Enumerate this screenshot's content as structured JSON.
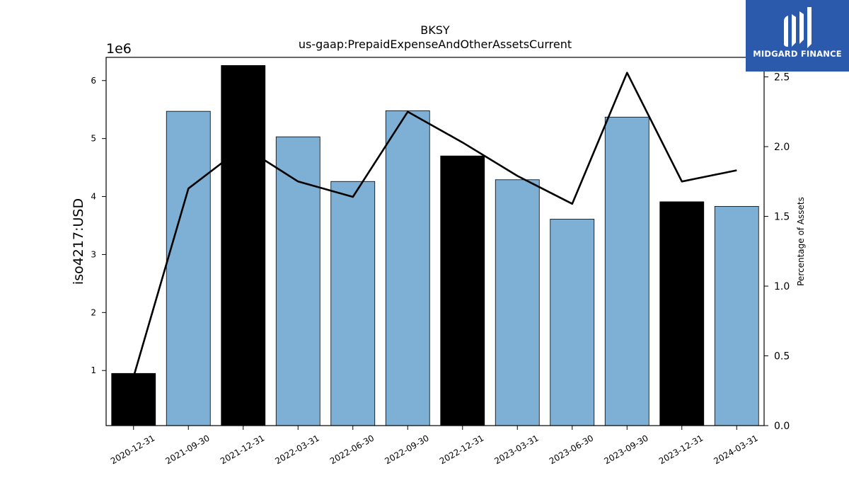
{
  "chart_data": {
    "type": "bar",
    "title": "BKSY",
    "subtitle": "us-gaap:PrepaidExpenseAndOtherAssetsCurrent",
    "ylabel": "iso4217:USD",
    "y_offset_label": "1e6",
    "y2label": "Percentage of Assets",
    "categories": [
      "2020-12-31",
      "2021-09-30",
      "2021-12-31",
      "2022-03-31",
      "2022-06-30",
      "2022-09-30",
      "2022-12-31",
      "2023-03-31",
      "2023-06-30",
      "2023-09-30",
      "2023-12-31",
      "2024-03-31"
    ],
    "values": [
      950000,
      5470000,
      6260000,
      5030000,
      4260000,
      5480000,
      4700000,
      4290000,
      3610000,
      5370000,
      3910000,
      3830000
    ],
    "bar_colors": [
      "#000000",
      "#7eb0d5",
      "#000000",
      "#7eb0d5",
      "#7eb0d5",
      "#7eb0d5",
      "#000000",
      "#7eb0d5",
      "#7eb0d5",
      "#7eb0d5",
      "#000000",
      "#7eb0d5"
    ],
    "line_values": [
      0.35,
      1.7,
      2.0,
      1.75,
      1.64,
      2.25,
      2.03,
      1.79,
      1.59,
      2.53,
      1.75,
      1.83
    ],
    "ylim": [
      0.05,
      6.4
    ],
    "y_ticks": [
      1,
      2,
      3,
      4,
      5,
      6
    ],
    "y2lim": [
      0,
      2.64
    ],
    "y2_ticks": [
      "0.0",
      "0.5",
      "1.0",
      "1.5",
      "2.0",
      "2.5"
    ],
    "grid": false,
    "line_color": "#000000"
  },
  "logo": {
    "text": "MIDGARD FINANCE",
    "background": "#2b5aac"
  }
}
